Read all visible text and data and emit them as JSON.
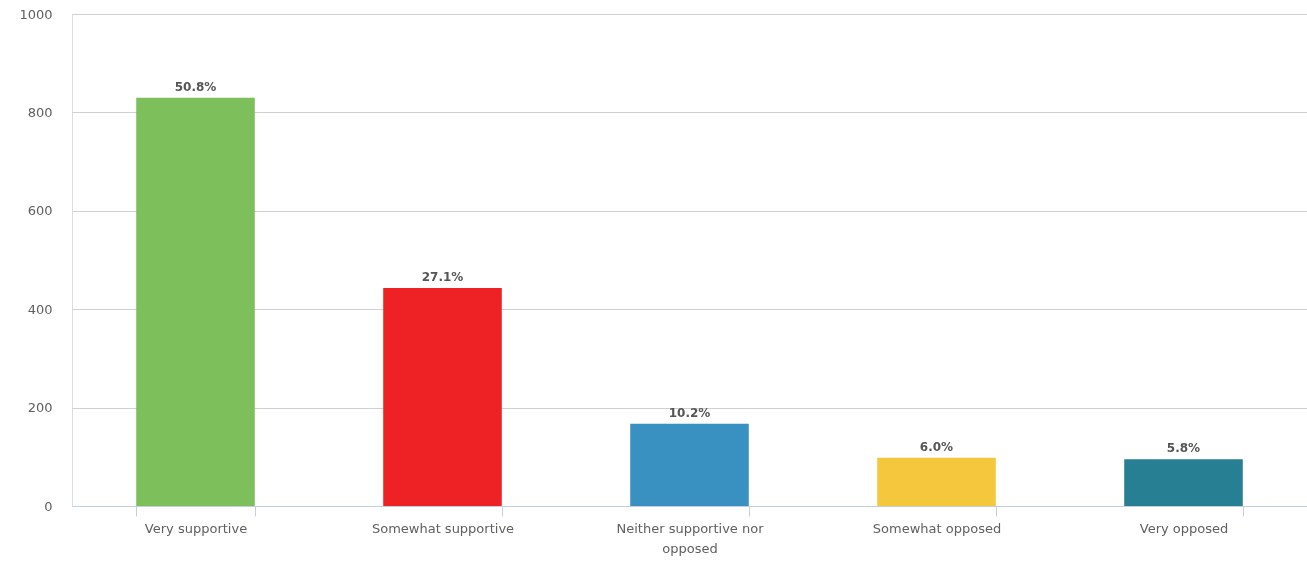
{
  "chart_data": {
    "type": "bar",
    "categories": [
      "Very supportive",
      "Somewhat supportive",
      "Neither supportive nor opposed",
      "Somewhat opposed",
      "Very opposed"
    ],
    "values": [
      830,
      443,
      167,
      98,
      95
    ],
    "colors": [
      "#7cbf5b",
      "#ee2224",
      "#3891c1",
      "#f4c73c",
      "#277f94"
    ],
    "annotations": [
      {
        "text": "50.8%",
        "x": "Very supportive",
        "y": 830
      },
      {
        "text": "27.1%",
        "x": "Somewhat supportive",
        "y": 443
      },
      {
        "text": "10.2%",
        "x": "Neither supportive nor opposed",
        "y": 167
      },
      {
        "text": "6.0%",
        "x": "Somewhat opposed",
        "y": 98
      },
      {
        "text": "5.8%",
        "x": "Very opposed",
        "y": 95
      }
    ],
    "ylim": [
      0,
      1000
    ],
    "yticks": [
      0,
      200,
      400,
      600,
      800,
      1000
    ],
    "grid": "y"
  }
}
